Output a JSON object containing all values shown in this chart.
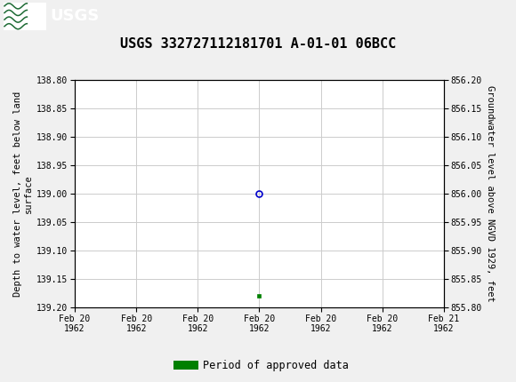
{
  "title": "USGS 332727112181701 A-01-01 06BCC",
  "title_fontsize": 11,
  "left_ylabel": "Depth to water level, feet below land\nsurface",
  "right_ylabel": "Groundwater level above NGVD 1929, feet",
  "ylim_left_top": 138.8,
  "ylim_left_bottom": 139.2,
  "ylim_right_top": 856.2,
  "ylim_right_bottom": 855.8,
  "yticks_left": [
    138.8,
    138.85,
    138.9,
    138.95,
    139.0,
    139.05,
    139.1,
    139.15,
    139.2
  ],
  "yticks_right": [
    856.2,
    856.15,
    856.1,
    856.05,
    856.0,
    855.95,
    855.9,
    855.85,
    855.8
  ],
  "xtick_positions": [
    0,
    1,
    2,
    3,
    4,
    5,
    6
  ],
  "xtick_labels": [
    "Feb 20\n1962",
    "Feb 20\n1962",
    "Feb 20\n1962",
    "Feb 20\n1962",
    "Feb 20\n1962",
    "Feb 20\n1962",
    "Feb 21\n1962"
  ],
  "data_x_circle": [
    3.0
  ],
  "data_y_circle": [
    139.0
  ],
  "data_x_square": [
    3.0
  ],
  "data_y_square": [
    139.18
  ],
  "circle_color": "#0000cc",
  "square_color": "#008000",
  "bg_color": "#f0f0f0",
  "plot_bg_color": "#ffffff",
  "header_bg_color": "#1e6b35",
  "grid_color": "#cccccc",
  "legend_label": "Period of approved data",
  "font_family": "DejaVu Sans Mono",
  "tick_fontsize": 7,
  "ylabel_fontsize": 7.5,
  "xlim": [
    0,
    6
  ]
}
